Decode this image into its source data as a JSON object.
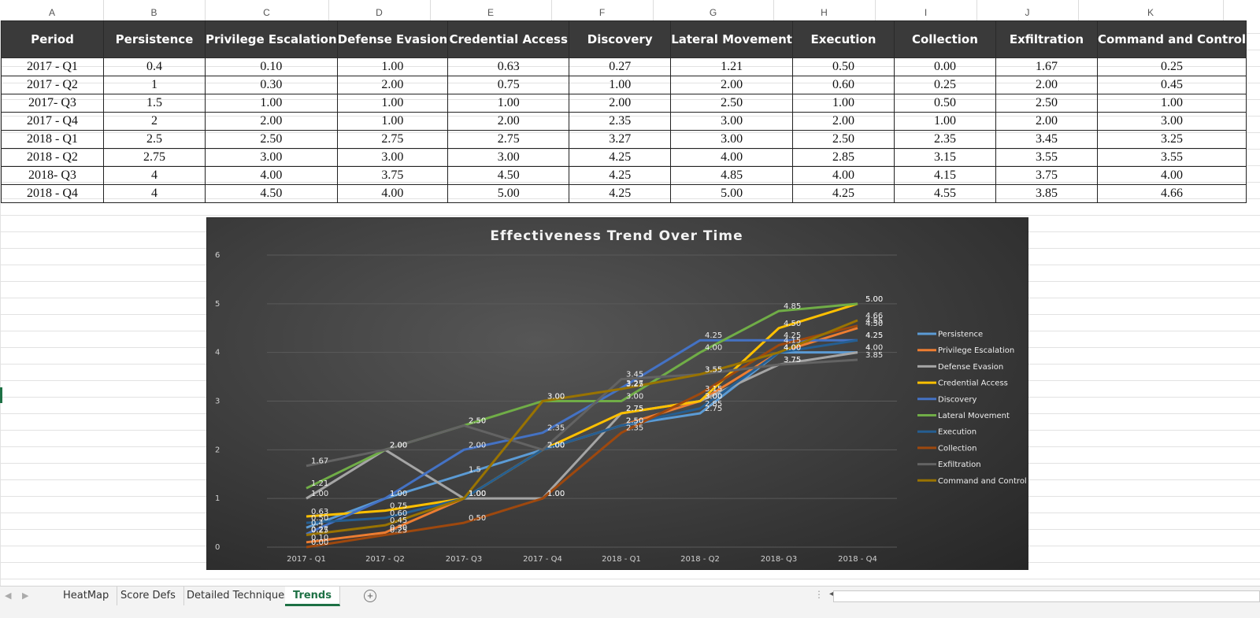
{
  "column_letters": [
    "A",
    "B",
    "C",
    "D",
    "E",
    "F",
    "G",
    "H",
    "I",
    "J",
    "K"
  ],
  "table": {
    "headers": [
      "Period",
      "Persistence",
      "Privilege Escalation",
      "Defense Evasion",
      "Credential Access",
      "Discovery",
      "Lateral Movement",
      "Execution",
      "Collection",
      "Exfiltration",
      "Command and Control"
    ],
    "rows": [
      [
        "2017 - Q1",
        "0.4",
        "0.10",
        "1.00",
        "0.63",
        "0.27",
        "1.21",
        "0.50",
        "0.00",
        "1.67",
        "0.25"
      ],
      [
        "2017 - Q2",
        "1",
        "0.30",
        "2.00",
        "0.75",
        "1.00",
        "2.00",
        "0.60",
        "0.25",
        "2.00",
        "0.45"
      ],
      [
        "2017- Q3",
        "1.5",
        "1.00",
        "1.00",
        "1.00",
        "2.00",
        "2.50",
        "1.00",
        "0.50",
        "2.50",
        "1.00"
      ],
      [
        "2017 - Q4",
        "2",
        "2.00",
        "1.00",
        "2.00",
        "2.35",
        "3.00",
        "2.00",
        "1.00",
        "2.00",
        "3.00"
      ],
      [
        "2018 - Q1",
        "2.5",
        "2.50",
        "2.75",
        "2.75",
        "3.27",
        "3.00",
        "2.50",
        "2.35",
        "3.45",
        "3.25"
      ],
      [
        "2018 - Q2",
        "2.75",
        "3.00",
        "3.00",
        "3.00",
        "4.25",
        "4.00",
        "2.85",
        "3.15",
        "3.55",
        "3.55"
      ],
      [
        "2018- Q3",
        "4",
        "4.00",
        "3.75",
        "4.50",
        "4.25",
        "4.85",
        "4.00",
        "4.15",
        "3.75",
        "4.00"
      ],
      [
        "2018 - Q4",
        "4",
        "4.50",
        "4.00",
        "5.00",
        "4.25",
        "5.00",
        "4.25",
        "4.55",
        "3.85",
        "4.66"
      ]
    ]
  },
  "chart_data": {
    "type": "line",
    "title": "Effectiveness Trend Over Time",
    "categories": [
      "2017 - Q1",
      "2017 - Q2",
      "2017- Q3",
      "2017 - Q4",
      "2018 - Q1",
      "2018 - Q2",
      "2018- Q3",
      "2018 - Q4"
    ],
    "ylim": [
      0,
      6
    ],
    "yticks": [
      "0",
      "1",
      "2",
      "3",
      "4",
      "5",
      "6"
    ],
    "grid": true,
    "legend_position": "right",
    "series": [
      {
        "name": "Persistence",
        "color": "#5b9bd5",
        "values": [
          0.4,
          1,
          1.5,
          2,
          2.5,
          2.75,
          4,
          4
        ],
        "labels": [
          "0.4",
          "1",
          "1.5",
          "2",
          "2.5",
          "2.75",
          "4",
          "4"
        ]
      },
      {
        "name": "Privilege Escalation",
        "color": "#ed7d31",
        "values": [
          0.1,
          0.3,
          1.0,
          2.0,
          2.5,
          3.0,
          4.0,
          4.5
        ],
        "labels": [
          "0.10",
          "0.30",
          "1.00",
          "2.00",
          "2.50",
          "3.00",
          "4.00",
          "4.50"
        ]
      },
      {
        "name": "Defense Evasion",
        "color": "#a5a5a5",
        "values": [
          1.0,
          2.0,
          1.0,
          1.0,
          2.75,
          3.0,
          3.75,
          4.0
        ],
        "labels": [
          "1.00",
          "2.00",
          "1.00",
          "1.00",
          "2.75",
          "3.00",
          "3.75",
          "4.00"
        ]
      },
      {
        "name": "Credential Access",
        "color": "#ffc000",
        "values": [
          0.63,
          0.75,
          1.0,
          2.0,
          2.75,
          3.0,
          4.5,
          5.0
        ],
        "labels": [
          "0.63",
          "0.75",
          "1.00",
          "2.00",
          "2.75",
          "3.00",
          "4.50",
          "5.00"
        ]
      },
      {
        "name": "Discovery",
        "color": "#4472c4",
        "values": [
          0.27,
          1.0,
          2.0,
          2.35,
          3.27,
          4.25,
          4.25,
          4.25
        ],
        "labels": [
          "0.27",
          "1.00",
          "2.00",
          "2.35",
          "3.27",
          "4.25",
          "4.25",
          "4.25"
        ]
      },
      {
        "name": "Lateral Movement",
        "color": "#70ad47",
        "values": [
          1.21,
          2.0,
          2.5,
          3.0,
          3.0,
          4.0,
          4.85,
          5.0
        ],
        "labels": [
          "1.21",
          "2.00",
          "2.50",
          "3.00",
          "3.00",
          "4.00",
          "4.85",
          "5.00"
        ]
      },
      {
        "name": "Execution",
        "color": "#255e91",
        "values": [
          0.5,
          0.6,
          1.0,
          2.0,
          2.5,
          2.85,
          4.0,
          4.25
        ],
        "labels": [
          "0.50",
          "0.60",
          "1.00",
          "2.00",
          "2.50",
          "2.85",
          "4.00",
          "4.25"
        ]
      },
      {
        "name": "Collection",
        "color": "#9e480e",
        "values": [
          0.0,
          0.25,
          0.5,
          1.0,
          2.35,
          3.15,
          4.15,
          4.55
        ],
        "labels": [
          "0.00",
          "0.25",
          "0.50",
          "1.00",
          "2.35",
          "3.15",
          "4.15",
          "4.55"
        ]
      },
      {
        "name": "Exfiltration",
        "color": "#636363",
        "values": [
          1.67,
          2.0,
          2.5,
          2.0,
          3.45,
          3.55,
          3.75,
          3.85
        ],
        "labels": [
          "1.67",
          "2.00",
          "2.50",
          "2.00",
          "3.45",
          "3.55",
          "3.75",
          "3.85"
        ]
      },
      {
        "name": "Command and Control",
        "color": "#997300",
        "values": [
          0.25,
          0.45,
          1.0,
          3.0,
          3.25,
          3.55,
          4.0,
          4.66
        ],
        "labels": [
          "0.25",
          "0.45",
          "1.00",
          "3.00",
          "3.25",
          "3.55",
          "4.00",
          "4.66"
        ]
      }
    ]
  },
  "sheet_tabs": {
    "tabs": [
      "HeatMap",
      "Score Defs",
      "Detailed Techniques",
      "Trends"
    ],
    "active": "Trends",
    "add_symbol": "+"
  }
}
